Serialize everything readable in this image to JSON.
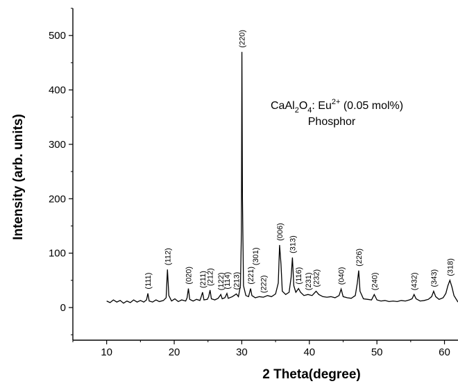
{
  "chart_data": {
    "type": "line",
    "title": "",
    "xlabel": "2 Theta(degree)",
    "ylabel": "Intensity (arb. units)",
    "xlim": [
      5,
      62
    ],
    "ylim": [
      -60,
      550
    ],
    "xticks": [
      10,
      20,
      30,
      40,
      50,
      60
    ],
    "yticks": [
      0,
      100,
      200,
      300,
      400,
      500
    ],
    "annotation": {
      "line1_parts": [
        "CaAl",
        "2",
        "O",
        "4",
        ": Eu",
        "2+",
        " (0.05 mol%)"
      ],
      "line2": "Phosphor"
    },
    "series": [
      {
        "points": [
          [
            10.0,
            12
          ],
          [
            10.5,
            9
          ],
          [
            11.0,
            14
          ],
          [
            11.5,
            10
          ],
          [
            12.0,
            13
          ],
          [
            12.5,
            8
          ],
          [
            13.0,
            12
          ],
          [
            13.5,
            9
          ],
          [
            14.0,
            14
          ],
          [
            14.5,
            10
          ],
          [
            15.0,
            13
          ],
          [
            15.5,
            10
          ],
          [
            15.9,
            14
          ],
          [
            16.1,
            26
          ],
          [
            16.3,
            12
          ],
          [
            16.8,
            10
          ],
          [
            17.3,
            14
          ],
          [
            17.8,
            11
          ],
          [
            18.4,
            13
          ],
          [
            18.8,
            18
          ],
          [
            19.0,
            70
          ],
          [
            19.2,
            22
          ],
          [
            19.6,
            12
          ],
          [
            20.1,
            16
          ],
          [
            20.6,
            11
          ],
          [
            21.1,
            14
          ],
          [
            21.7,
            12
          ],
          [
            21.9,
            18
          ],
          [
            22.1,
            35
          ],
          [
            22.3,
            15
          ],
          [
            22.8,
            12
          ],
          [
            23.3,
            15
          ],
          [
            23.8,
            13
          ],
          [
            24.0,
            20
          ],
          [
            24.2,
            28
          ],
          [
            24.4,
            14
          ],
          [
            24.9,
            15
          ],
          [
            25.1,
            20
          ],
          [
            25.3,
            32
          ],
          [
            25.5,
            16
          ],
          [
            26.0,
            14
          ],
          [
            26.5,
            17
          ],
          [
            26.9,
            24
          ],
          [
            27.1,
            16
          ],
          [
            27.5,
            18
          ],
          [
            27.8,
            26
          ],
          [
            28.0,
            17
          ],
          [
            28.6,
            20
          ],
          [
            29.2,
            25
          ],
          [
            29.5,
            20
          ],
          [
            29.8,
            40
          ],
          [
            29.95,
            140
          ],
          [
            30.02,
            470
          ],
          [
            30.1,
            200
          ],
          [
            30.25,
            40
          ],
          [
            30.6,
            22
          ],
          [
            31.0,
            20
          ],
          [
            31.3,
            35
          ],
          [
            31.5,
            22
          ],
          [
            32.0,
            18
          ],
          [
            32.6,
            20
          ],
          [
            33.2,
            19
          ],
          [
            33.8,
            22
          ],
          [
            34.4,
            20
          ],
          [
            35.0,
            25
          ],
          [
            35.4,
            45
          ],
          [
            35.6,
            115
          ],
          [
            35.8,
            80
          ],
          [
            36.0,
            30
          ],
          [
            36.5,
            24
          ],
          [
            37.0,
            28
          ],
          [
            37.3,
            55
          ],
          [
            37.5,
            92
          ],
          [
            37.7,
            40
          ],
          [
            38.0,
            28
          ],
          [
            38.4,
            35
          ],
          [
            38.7,
            28
          ],
          [
            39.2,
            22
          ],
          [
            39.8,
            24
          ],
          [
            40.4,
            22
          ],
          [
            41.0,
            30
          ],
          [
            41.4,
            24
          ],
          [
            42.0,
            20
          ],
          [
            42.6,
            19
          ],
          [
            43.2,
            20
          ],
          [
            43.8,
            18
          ],
          [
            44.4,
            22
          ],
          [
            44.7,
            34
          ],
          [
            45.0,
            20
          ],
          [
            45.6,
            18
          ],
          [
            46.2,
            17
          ],
          [
            46.8,
            22
          ],
          [
            47.1,
            45
          ],
          [
            47.3,
            68
          ],
          [
            47.5,
            30
          ],
          [
            48.0,
            16
          ],
          [
            48.6,
            15
          ],
          [
            49.2,
            14
          ],
          [
            49.6,
            24
          ],
          [
            50.0,
            14
          ],
          [
            50.6,
            12
          ],
          [
            51.2,
            13
          ],
          [
            51.8,
            11
          ],
          [
            52.4,
            12
          ],
          [
            53.0,
            11
          ],
          [
            53.6,
            13
          ],
          [
            54.2,
            12
          ],
          [
            54.8,
            14
          ],
          [
            55.2,
            16
          ],
          [
            55.5,
            24
          ],
          [
            55.8,
            16
          ],
          [
            56.4,
            12
          ],
          [
            57.0,
            13
          ],
          [
            57.6,
            15
          ],
          [
            58.1,
            20
          ],
          [
            58.4,
            30
          ],
          [
            58.7,
            20
          ],
          [
            59.2,
            15
          ],
          [
            59.8,
            18
          ],
          [
            60.2,
            26
          ],
          [
            60.5,
            40
          ],
          [
            60.8,
            50
          ],
          [
            61.1,
            38
          ],
          [
            61.4,
            22
          ],
          [
            62.0,
            10
          ]
        ]
      }
    ],
    "peak_labels": [
      {
        "text": "(111)",
        "x": 16.1,
        "y": 26
      },
      {
        "text": "(112)",
        "x": 19.0,
        "y": 70
      },
      {
        "text": "(020)",
        "x": 22.1,
        "y": 35
      },
      {
        "text": "(211)",
        "x": 24.2,
        "y": 28
      },
      {
        "text": "(212)",
        "x": 25.3,
        "y": 32
      },
      {
        "text": "(122)",
        "x": 26.9,
        "y": 24
      },
      {
        "text": "(114)",
        "x": 27.8,
        "y": 26
      },
      {
        "text": "(213)",
        "x": 29.2,
        "y": 25
      },
      {
        "text": "(220)",
        "x": 30.02,
        "y": 470
      },
      {
        "text": "(221)",
        "x": 31.3,
        "y": 35
      },
      {
        "text": "(301)",
        "x": 32.0,
        "y": 70
      },
      {
        "text": "(222)",
        "x": 33.2,
        "y": 19
      },
      {
        "text": "(006)",
        "x": 35.6,
        "y": 115
      },
      {
        "text": "(313)",
        "x": 37.5,
        "y": 92
      },
      {
        "text": "(116)",
        "x": 38.4,
        "y": 35
      },
      {
        "text": "(231)",
        "x": 39.8,
        "y": 24
      },
      {
        "text": "(232)",
        "x": 41.0,
        "y": 30
      },
      {
        "text": "(040)",
        "x": 44.7,
        "y": 34
      },
      {
        "text": "(226)",
        "x": 47.3,
        "y": 68
      },
      {
        "text": "(240)",
        "x": 49.6,
        "y": 24
      },
      {
        "text": "(432)",
        "x": 55.5,
        "y": 24
      },
      {
        "text": "(343)",
        "x": 58.4,
        "y": 30
      },
      {
        "text": "(318)",
        "x": 60.8,
        "y": 50
      }
    ]
  }
}
